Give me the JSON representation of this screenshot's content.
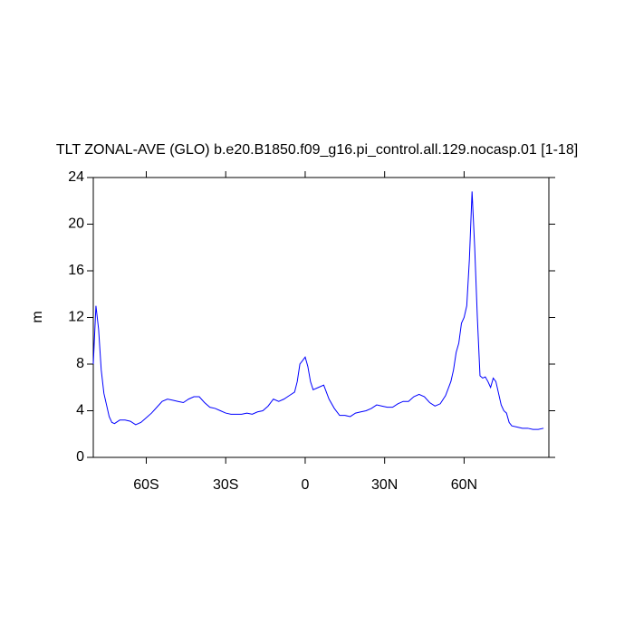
{
  "chart_data": {
    "type": "line",
    "title": "TLT ZONAL-AVE (GLO) b.e20.B1850.f09_g16.pi_control.all.129.nocasp.01 [1-18]",
    "y_label": "m",
    "x": [
      -80,
      -79,
      -78,
      -77,
      -76,
      -75,
      -74,
      -73,
      -72,
      -70,
      -68,
      -66,
      -64,
      -62,
      -60,
      -58,
      -56,
      -54,
      -52,
      -50,
      -48,
      -46,
      -44,
      -42,
      -40,
      -38,
      -36,
      -34,
      -32,
      -30,
      -28,
      -26,
      -24,
      -22,
      -20,
      -18,
      -16,
      -14,
      -12,
      -10,
      -8,
      -6,
      -4,
      -3,
      -2,
      -1,
      0,
      1,
      2,
      3,
      5,
      7,
      9,
      11,
      13,
      15,
      17,
      19,
      21,
      23,
      25,
      27,
      29,
      31,
      33,
      35,
      37,
      39,
      41,
      43,
      45,
      47,
      49,
      51,
      53,
      55,
      56,
      57,
      58,
      59,
      60,
      61,
      62,
      63,
      64,
      65,
      66,
      67,
      68,
      69,
      70,
      71,
      72,
      73,
      74,
      75,
      76,
      77,
      78,
      80,
      82,
      84,
      86,
      88,
      90
    ],
    "series": [
      {
        "name": "TLT",
        "color": "#0000ff",
        "values": [
          8,
          13,
          11,
          7.5,
          5.5,
          4.5,
          3.5,
          3.0,
          2.9,
          3.2,
          3.2,
          3.1,
          2.8,
          3.0,
          3.4,
          3.8,
          4.3,
          4.8,
          5.0,
          4.9,
          4.8,
          4.7,
          5.0,
          5.2,
          5.2,
          4.7,
          4.3,
          4.2,
          4.0,
          3.8,
          3.7,
          3.7,
          3.7,
          3.8,
          3.7,
          3.9,
          4.0,
          4.4,
          5.0,
          4.8,
          5.0,
          5.3,
          5.6,
          6.5,
          8.0,
          8.3,
          8.6,
          7.8,
          6.5,
          5.8,
          6.0,
          6.2,
          5.0,
          4.2,
          3.6,
          3.6,
          3.5,
          3.8,
          3.9,
          4.0,
          4.2,
          4.5,
          4.4,
          4.3,
          4.3,
          4.6,
          4.8,
          4.8,
          5.2,
          5.4,
          5.2,
          4.7,
          4.4,
          4.6,
          5.3,
          6.5,
          7.5,
          9.0,
          9.8,
          11.5,
          12,
          13,
          17,
          22.8,
          18,
          12,
          7,
          6.8,
          6.9,
          6.5,
          6.0,
          6.8,
          6.5,
          5.5,
          4.5,
          4.0,
          3.8,
          3.0,
          2.7,
          2.6,
          2.5,
          2.5,
          2.4,
          2.4,
          2.5
        ]
      }
    ],
    "xlim": [
      -80,
      92
    ],
    "xticks": [
      {
        "value": -60,
        "label": "60S"
      },
      {
        "value": -30,
        "label": "30S"
      },
      0,
      {
        "value": 30,
        "label": "30N"
      },
      {
        "value": 60,
        "label": "60N"
      }
    ],
    "ylim": [
      0,
      24
    ],
    "yticks": [
      0,
      4,
      8,
      12,
      16,
      20,
      24
    ]
  }
}
